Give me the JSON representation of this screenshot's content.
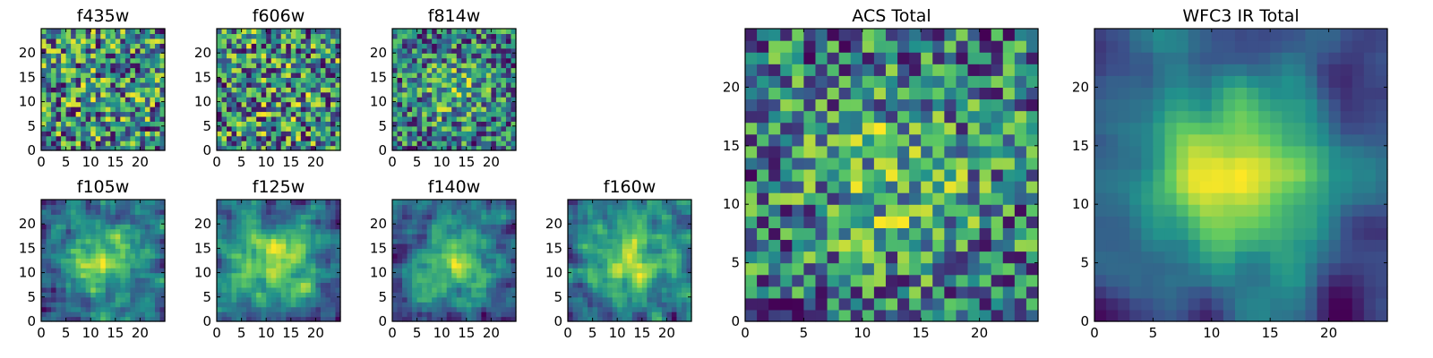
{
  "chart_data": [
    {
      "type": "heatmap",
      "title": "f435w",
      "xlim": [
        0,
        25
      ],
      "ylim": [
        0,
        25
      ],
      "xticks": [
        0,
        5,
        10,
        15,
        20
      ],
      "yticks": [
        0,
        5,
        10,
        15,
        20
      ],
      "grid_size": [
        25,
        25
      ],
      "profile": "noise",
      "seed": 11
    },
    {
      "type": "heatmap",
      "title": "f606w",
      "xlim": [
        0,
        25
      ],
      "ylim": [
        0,
        25
      ],
      "xticks": [
        0,
        5,
        10,
        15,
        20
      ],
      "yticks": [
        0,
        5,
        10,
        15,
        20
      ],
      "grid_size": [
        25,
        25
      ],
      "profile": "noise",
      "seed": 23
    },
    {
      "type": "heatmap",
      "title": "f814w",
      "xlim": [
        0,
        25
      ],
      "ylim": [
        0,
        25
      ],
      "xticks": [
        0,
        5,
        10,
        15,
        20
      ],
      "yticks": [
        0,
        5,
        10,
        15,
        20
      ],
      "grid_size": [
        25,
        25
      ],
      "profile": "weak-center",
      "seed": 37
    },
    {
      "type": "heatmap",
      "title": "f105w",
      "xlim": [
        0,
        25
      ],
      "ylim": [
        0,
        25
      ],
      "xticks": [
        0,
        5,
        10,
        15,
        20
      ],
      "yticks": [
        0,
        5,
        10,
        15,
        20
      ],
      "grid_size": [
        25,
        25
      ],
      "profile": "smooth-center",
      "seed": 41
    },
    {
      "type": "heatmap",
      "title": "f125w",
      "xlim": [
        0,
        25
      ],
      "ylim": [
        0,
        25
      ],
      "xticks": [
        0,
        5,
        10,
        15,
        20
      ],
      "yticks": [
        0,
        5,
        10,
        15,
        20
      ],
      "grid_size": [
        25,
        25
      ],
      "profile": "smooth-center",
      "seed": 53
    },
    {
      "type": "heatmap",
      "title": "f140w",
      "xlim": [
        0,
        25
      ],
      "ylim": [
        0,
        25
      ],
      "xticks": [
        0,
        5,
        10,
        15,
        20
      ],
      "yticks": [
        0,
        5,
        10,
        15,
        20
      ],
      "grid_size": [
        25,
        25
      ],
      "profile": "smooth-center",
      "seed": 67
    },
    {
      "type": "heatmap",
      "title": "f160w",
      "xlim": [
        0,
        25
      ],
      "ylim": [
        0,
        25
      ],
      "xticks": [
        0,
        5,
        10,
        15,
        20
      ],
      "yticks": [
        0,
        5,
        10,
        15,
        20
      ],
      "grid_size": [
        25,
        25
      ],
      "profile": "smooth-center",
      "seed": 79
    },
    {
      "type": "heatmap",
      "title": "ACS Total",
      "xlim": [
        0,
        25
      ],
      "ylim": [
        0,
        25
      ],
      "xticks": [
        0,
        5,
        10,
        15,
        20
      ],
      "yticks": [
        0,
        5,
        10,
        15,
        20
      ],
      "grid_size": [
        25,
        25
      ],
      "profile": "weak-center",
      "seed": 97
    },
    {
      "type": "heatmap",
      "title": "WFC3 IR Total",
      "xlim": [
        0,
        25
      ],
      "ylim": [
        0,
        25
      ],
      "xticks": [
        0,
        5,
        10,
        15,
        20
      ],
      "yticks": [
        0,
        5,
        10,
        15,
        20
      ],
      "grid_size": [
        25,
        25
      ],
      "profile": "strong-center",
      "seed": 131
    }
  ],
  "colormap": [
    "#440154",
    "#3b528b",
    "#21918c",
    "#5ec962",
    "#fde725"
  ]
}
